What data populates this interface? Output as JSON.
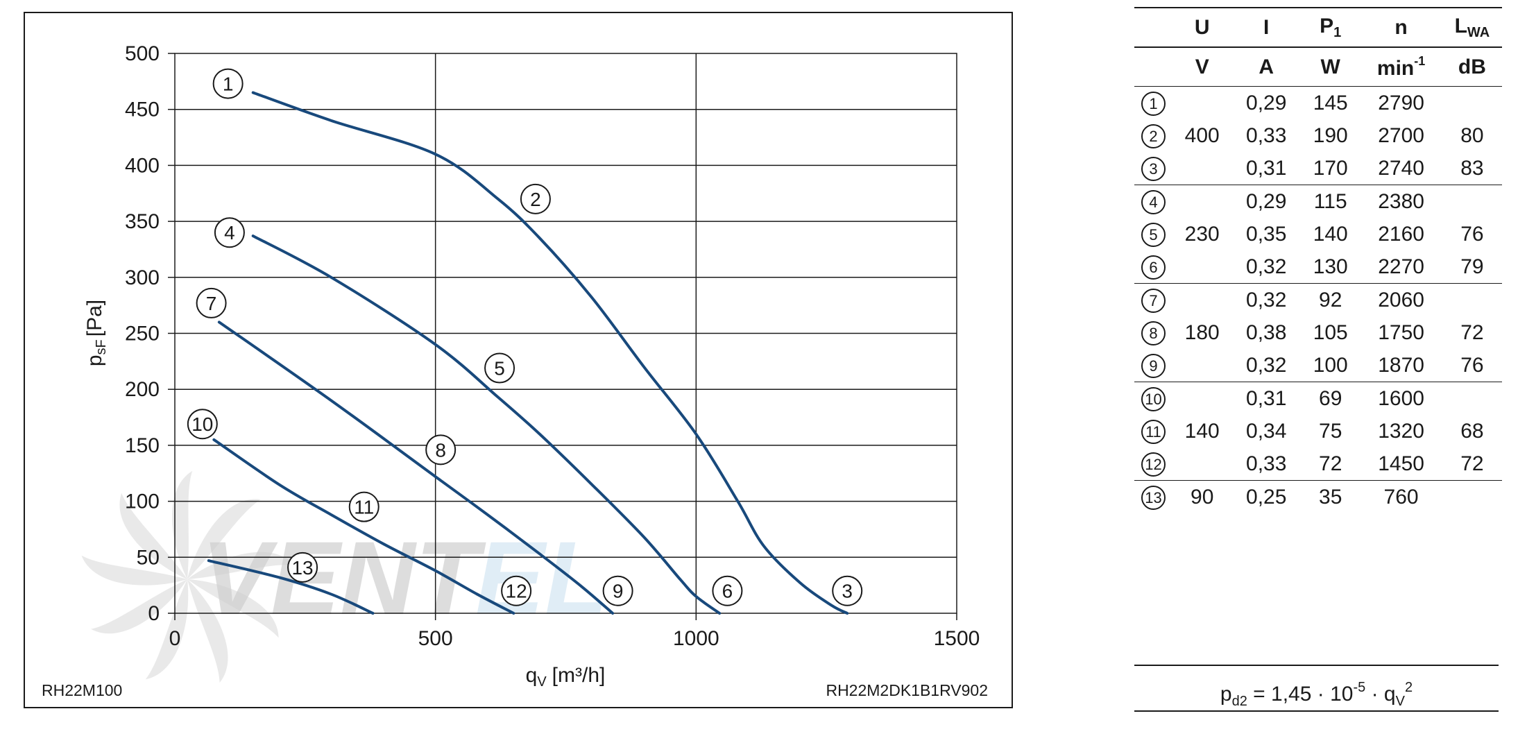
{
  "chart_data": {
    "type": "line",
    "xlabel": "q",
    "xlabel_sub": "V",
    "xlabel_unit": "[m³/h]",
    "ylabel": "p",
    "ylabel_sub": "sF",
    "ylabel_unit": "[Pa]",
    "xlim": [
      0,
      1500
    ],
    "ylim": [
      0,
      500
    ],
    "x_ticks": [
      0,
      500,
      1000,
      1500
    ],
    "y_ticks": [
      0,
      50,
      100,
      150,
      200,
      250,
      300,
      350,
      400,
      450,
      500
    ],
    "x_grid": [
      500,
      1000
    ],
    "grid": true,
    "left_corner_label": "RH22M100",
    "right_corner_label": "RH22M2DK1B1RV902",
    "series": [
      {
        "label": "1-2-3",
        "x": [
          150,
          300,
          500,
          620,
          700,
          800,
          900,
          1000,
          1080,
          1130,
          1200,
          1260,
          1290
        ],
        "y": [
          465,
          440,
          410,
          370,
          335,
          282,
          220,
          160,
          100,
          60,
          27,
          7,
          0
        ]
      },
      {
        "label": "4-5-6",
        "x": [
          150,
          300,
          500,
          620,
          700,
          800,
          900,
          970,
          1000,
          1045
        ],
        "y": [
          337,
          300,
          240,
          193,
          160,
          115,
          68,
          30,
          15,
          0
        ]
      },
      {
        "label": "7-8-9",
        "x": [
          85,
          300,
          500,
          600,
          700,
          780,
          840
        ],
        "y": [
          260,
          190,
          122,
          88,
          53,
          24,
          0
        ]
      },
      {
        "label": "10-11-12",
        "x": [
          75,
          200,
          300,
          400,
          500,
          580,
          650
        ],
        "y": [
          155,
          115,
          88,
          62,
          38,
          17,
          0
        ]
      },
      {
        "label": "13",
        "x": [
          65,
          200,
          300,
          380
        ],
        "y": [
          47,
          32,
          17,
          0
        ]
      }
    ],
    "curve_markers": [
      {
        "id": "1",
        "x": 102,
        "y": 473
      },
      {
        "id": "2",
        "x": 692,
        "y": 370
      },
      {
        "id": "3",
        "x": 1290,
        "y": 20
      },
      {
        "id": "4",
        "x": 105,
        "y": 340
      },
      {
        "id": "5",
        "x": 623,
        "y": 219
      },
      {
        "id": "6",
        "x": 1060,
        "y": 20
      },
      {
        "id": "7",
        "x": 70,
        "y": 277
      },
      {
        "id": "8",
        "x": 510,
        "y": 146
      },
      {
        "id": "9",
        "x": 850,
        "y": 20
      },
      {
        "id": "10",
        "x": 53,
        "y": 169
      },
      {
        "id": "11",
        "x": 363,
        "y": 95
      },
      {
        "id": "12",
        "x": 655,
        "y": 20
      },
      {
        "id": "13",
        "x": 245,
        "y": 41
      }
    ]
  },
  "table": {
    "headers": [
      {
        "main": "U",
        "sub": ""
      },
      {
        "main": "I",
        "sub": ""
      },
      {
        "main": "P",
        "sub": "1"
      },
      {
        "main": "n",
        "sub": ""
      },
      {
        "main": "L",
        "sub": "WA"
      }
    ],
    "units": [
      {
        "main": "V",
        "sup": ""
      },
      {
        "main": "A",
        "sup": ""
      },
      {
        "main": "W",
        "sup": ""
      },
      {
        "main": "min",
        "sup": "-1"
      },
      {
        "main": "dB",
        "sup": ""
      }
    ],
    "rows": [
      {
        "id": "1",
        "u": "",
        "i": "0,29",
        "p": "145",
        "n": "2790",
        "l": ""
      },
      {
        "id": "2",
        "u": "400",
        "i": "0,33",
        "p": "190",
        "n": "2700",
        "l": "80"
      },
      {
        "id": "3",
        "u": "",
        "i": "0,31",
        "p": "170",
        "n": "2740",
        "l": "83"
      },
      {
        "id": "4",
        "u": "",
        "i": "0,29",
        "p": "115",
        "n": "2380",
        "l": ""
      },
      {
        "id": "5",
        "u": "230",
        "i": "0,35",
        "p": "140",
        "n": "2160",
        "l": "76"
      },
      {
        "id": "6",
        "u": "",
        "i": "0,32",
        "p": "130",
        "n": "2270",
        "l": "79"
      },
      {
        "id": "7",
        "u": "",
        "i": "0,32",
        "p": "92",
        "n": "2060",
        "l": ""
      },
      {
        "id": "8",
        "u": "180",
        "i": "0,38",
        "p": "105",
        "n": "1750",
        "l": "72"
      },
      {
        "id": "9",
        "u": "",
        "i": "0,32",
        "p": "100",
        "n": "1870",
        "l": "76"
      },
      {
        "id": "10",
        "u": "",
        "i": "0,31",
        "p": "69",
        "n": "1600",
        "l": ""
      },
      {
        "id": "11",
        "u": "140",
        "i": "0,34",
        "p": "75",
        "n": "1320",
        "l": "68"
      },
      {
        "id": "12",
        "u": "",
        "i": "0,33",
        "p": "72",
        "n": "1450",
        "l": "72"
      },
      {
        "id": "13",
        "u": "90",
        "i": "0,25",
        "p": "35",
        "n": "760",
        "l": ""
      }
    ]
  },
  "formula": {
    "lhs": "p",
    "lhs_sub": "d2",
    "mid": " = 1,45 · 10",
    "exp": "-5",
    "tail": " · q",
    "tail_sub": "V",
    "tail_sup": "2"
  },
  "watermark": {
    "text": "VENTEL",
    "colors": [
      "#d4d4d4",
      "#d6e8f4"
    ]
  }
}
